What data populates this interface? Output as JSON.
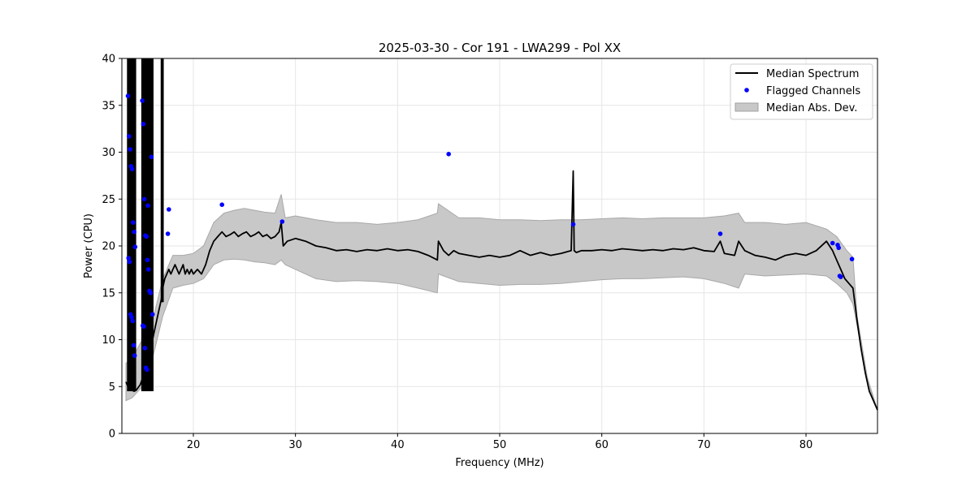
{
  "chart_data": {
    "type": "line",
    "title": "2025-03-30 - Cor 191 - LWA299 - Pol XX",
    "xlabel": "Frequency (MHz)",
    "ylabel": "Power (CPU)",
    "xlim": [
      13,
      87
    ],
    "ylim": [
      0,
      40
    ],
    "xticks": [
      20,
      30,
      40,
      50,
      60,
      70,
      80
    ],
    "yticks": [
      0,
      5,
      10,
      15,
      20,
      25,
      30,
      35,
      40
    ],
    "grid": true,
    "legend_position": "top-right",
    "colors": {
      "median": "#000000",
      "flagged": "#0000ff",
      "mad": "#b0b0b0"
    },
    "series": [
      {
        "name": "Median Spectrum",
        "kind": "line",
        "x": [
          13.4,
          13.6,
          13.8,
          14.0,
          14.2,
          14.4,
          14.6,
          14.8,
          15.0,
          15.2,
          15.4,
          15.6,
          15.8,
          16.0,
          16.2,
          16.4,
          16.6,
          16.8,
          16.9,
          17.0,
          17.1,
          17.2,
          17.4,
          17.6,
          17.8,
          18.0,
          18.2,
          18.4,
          18.6,
          18.8,
          19.0,
          19.2,
          19.4,
          19.6,
          19.8,
          20.0,
          20.4,
          20.8,
          21.2,
          21.6,
          22.0,
          22.4,
          22.8,
          23.2,
          23.6,
          24.0,
          24.4,
          24.8,
          25.2,
          25.6,
          26.0,
          26.4,
          26.8,
          27.2,
          27.6,
          28.0,
          28.4,
          28.6,
          28.8,
          29.2,
          30.0,
          31.0,
          32.0,
          33.0,
          34.0,
          35.0,
          36.0,
          37.0,
          38.0,
          39.0,
          40.0,
          41.0,
          42.0,
          43.0,
          43.9,
          44.0,
          44.5,
          45.0,
          45.5,
          46.0,
          47.0,
          48.0,
          49.0,
          50.0,
          51.0,
          52.0,
          53.0,
          54.0,
          55.0,
          56.0,
          57.0,
          57.2,
          57.3,
          57.5,
          58.0,
          59.0,
          60.0,
          61.0,
          62.0,
          63.0,
          64.0,
          65.0,
          66.0,
          67.0,
          68.0,
          69.0,
          70.0,
          71.0,
          71.6,
          72.0,
          73.0,
          73.4,
          74.0,
          75.0,
          76.0,
          77.0,
          78.0,
          79.0,
          80.0,
          81.0,
          82.0,
          82.6,
          83.0,
          83.4,
          83.8,
          84.2,
          84.6,
          85.0,
          85.4,
          85.8,
          86.2,
          86.6,
          87.0
        ],
        "y": [
          5.5,
          5.0,
          4.8,
          4.6,
          4.5,
          4.6,
          4.9,
          5.2,
          5.8,
          6.5,
          7.2,
          8.0,
          9.0,
          10.0,
          11.0,
          12.0,
          13.0,
          14.0,
          14.5,
          15.5,
          16.0,
          16.5,
          17.0,
          17.5,
          17.0,
          17.5,
          18.0,
          17.5,
          17.0,
          17.5,
          18.0,
          17.0,
          17.5,
          17.0,
          17.5,
          17.0,
          17.5,
          17.0,
          18.0,
          19.5,
          20.5,
          21.0,
          21.5,
          21.0,
          21.2,
          21.5,
          21.0,
          21.3,
          21.5,
          21.0,
          21.2,
          21.5,
          21.0,
          21.2,
          20.8,
          21.0,
          21.5,
          22.5,
          20.0,
          20.5,
          20.8,
          20.5,
          20.0,
          19.8,
          19.5,
          19.6,
          19.4,
          19.6,
          19.5,
          19.7,
          19.5,
          19.6,
          19.4,
          19.0,
          18.5,
          20.5,
          19.5,
          19.0,
          19.5,
          19.2,
          19.0,
          18.8,
          19.0,
          18.8,
          19.0,
          19.5,
          19.0,
          19.3,
          19.0,
          19.2,
          19.5,
          28.0,
          19.5,
          19.3,
          19.5,
          19.5,
          19.6,
          19.5,
          19.7,
          19.6,
          19.5,
          19.6,
          19.5,
          19.7,
          19.6,
          19.8,
          19.5,
          19.4,
          20.5,
          19.2,
          19.0,
          20.5,
          19.5,
          19.0,
          18.8,
          18.5,
          19.0,
          19.2,
          19.0,
          19.5,
          20.5,
          19.5,
          18.5,
          17.5,
          16.5,
          16.0,
          15.5,
          12.0,
          9.0,
          6.5,
          4.5,
          3.5,
          2.5
        ]
      },
      {
        "name": "Flagged Channels",
        "kind": "scatter",
        "x": [
          13.6,
          13.7,
          13.8,
          13.9,
          14.0,
          14.1,
          14.2,
          14.3,
          13.65,
          13.75,
          13.85,
          13.95,
          14.05,
          14.15,
          14.25,
          15.0,
          15.1,
          15.2,
          15.3,
          15.4,
          15.5,
          15.6,
          15.7,
          15.8,
          15.9,
          16.0,
          15.05,
          15.15,
          15.25,
          15.35,
          15.45,
          15.55,
          17.5,
          17.6,
          22.8,
          28.7,
          45.0,
          57.2,
          71.6,
          82.6,
          83.1,
          83.2,
          83.3,
          83.4,
          84.5
        ],
        "y": [
          36.0,
          31.7,
          30.3,
          28.5,
          28.2,
          22.5,
          21.5,
          19.9,
          18.7,
          18.3,
          12.7,
          12.4,
          12.0,
          9.4,
          8.3,
          35.5,
          33.0,
          25.0,
          21.1,
          21.0,
          18.5,
          17.5,
          15.2,
          15.0,
          29.5,
          12.7,
          11.5,
          11.4,
          9.1,
          7.0,
          6.8,
          24.3,
          21.3,
          23.9,
          24.4,
          22.6,
          29.8,
          22.3,
          21.3,
          20.3,
          20.1,
          19.8,
          16.8,
          16.7,
          18.6
        ]
      },
      {
        "name": "Median Abs. Dev.",
        "kind": "band",
        "x": [
          13.4,
          14.0,
          15.0,
          16.0,
          17.0,
          18.0,
          19.0,
          20.0,
          21.0,
          22.0,
          23.0,
          24.0,
          25.0,
          26.0,
          27.0,
          28.0,
          28.6,
          29.0,
          30.0,
          32.0,
          34.0,
          36.0,
          38.0,
          40.0,
          42.0,
          43.9,
          44.0,
          46.0,
          48.0,
          50.0,
          52.0,
          54.0,
          56.0,
          58.0,
          60.0,
          62.0,
          64.0,
          66.0,
          68.0,
          70.0,
          72.0,
          73.4,
          74.0,
          76.0,
          78.0,
          80.0,
          82.0,
          83.0,
          84.0,
          84.6,
          85.0,
          86.0,
          87.0
        ],
        "lower": [
          3.5,
          3.8,
          5.0,
          8.0,
          12.5,
          15.5,
          15.8,
          16.0,
          16.5,
          18.0,
          18.5,
          18.6,
          18.5,
          18.3,
          18.2,
          18.0,
          18.5,
          18.0,
          17.5,
          16.5,
          16.2,
          16.3,
          16.2,
          16.0,
          15.5,
          15.0,
          17.0,
          16.2,
          16.0,
          15.8,
          15.9,
          15.9,
          16.0,
          16.2,
          16.4,
          16.5,
          16.5,
          16.6,
          16.7,
          16.5,
          16.0,
          15.5,
          17.0,
          16.8,
          16.9,
          17.0,
          16.8,
          16.0,
          15.0,
          13.8,
          11.5,
          5.5,
          2.5
        ],
        "upper": [
          7.5,
          8.0,
          10.0,
          12.0,
          16.5,
          19.0,
          19.0,
          19.2,
          20.0,
          22.5,
          23.5,
          23.8,
          24.0,
          23.8,
          23.6,
          23.5,
          25.5,
          23.0,
          23.2,
          22.8,
          22.5,
          22.5,
          22.3,
          22.5,
          22.8,
          23.5,
          24.5,
          23.0,
          23.0,
          22.8,
          22.8,
          22.7,
          22.8,
          22.8,
          22.9,
          23.0,
          22.9,
          23.0,
          23.0,
          23.0,
          23.2,
          23.5,
          22.5,
          22.5,
          22.3,
          22.5,
          21.8,
          21.0,
          19.5,
          18.8,
          12.5,
          6.0,
          2.5
        ]
      }
    ]
  }
}
